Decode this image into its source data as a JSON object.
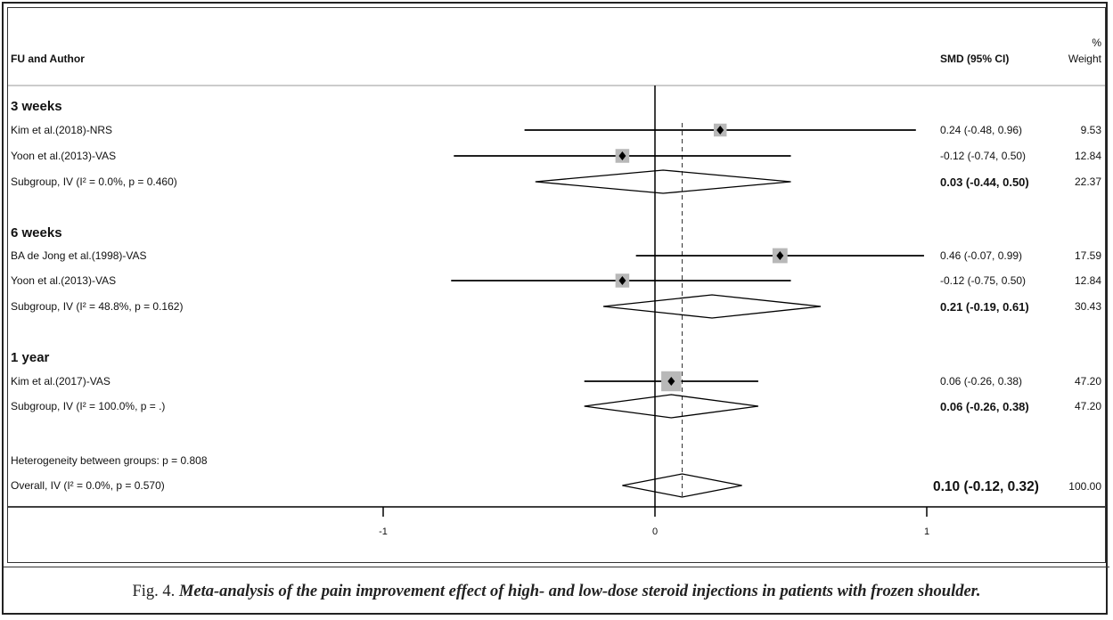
{
  "chart_data": {
    "type": "forest",
    "headers": {
      "study": "FU and Author",
      "effect": "SMD (95% CI)",
      "weight_top": "%",
      "weight_bottom": "Weight"
    },
    "xlim": [
      -1.95,
      1.55
    ],
    "null_line": 0,
    "overall_line": 0.1,
    "ticks": [
      {
        "value": -1,
        "label": "-1"
      },
      {
        "value": 0,
        "label": "0"
      },
      {
        "value": 1,
        "label": "1"
      }
    ],
    "groups": [
      {
        "name": "3 weeks",
        "studies": [
          {
            "label": "Kim et al.(2018)-NRS",
            "es": 0.24,
            "lo": -0.48,
            "hi": 0.96,
            "ci_text": "0.24 (-0.48, 0.96)",
            "weight": "9.53"
          },
          {
            "label": "Yoon et al.(2013)-VAS",
            "es": -0.12,
            "lo": -0.74,
            "hi": 0.5,
            "ci_text": "-0.12 (-0.74, 0.50)",
            "weight": "12.84"
          }
        ],
        "subtotal": {
          "label": "Subgroup, IV (I² = 0.0%, p = 0.460)",
          "es": 0.03,
          "lo": -0.44,
          "hi": 0.5,
          "ci_text": "0.03 (-0.44, 0.50)",
          "weight": "22.37"
        }
      },
      {
        "name": "6 weeks",
        "studies": [
          {
            "label": "BA de Jong et al.(1998)-VAS",
            "es": 0.46,
            "lo": -0.07,
            "hi": 0.99,
            "ci_text": "0.46 (-0.07, 0.99)",
            "weight": "17.59"
          },
          {
            "label": "Yoon et al.(2013)-VAS",
            "es": -0.12,
            "lo": -0.75,
            "hi": 0.5,
            "ci_text": "-0.12 (-0.75, 0.50)",
            "weight": "12.84"
          }
        ],
        "subtotal": {
          "label": "Subgroup, IV (I² = 48.8%, p = 0.162)",
          "es": 0.21,
          "lo": -0.19,
          "hi": 0.61,
          "ci_text": "0.21 (-0.19, 0.61)",
          "weight": "30.43"
        }
      },
      {
        "name": "1 year",
        "studies": [
          {
            "label": "Kim et al.(2017)-VAS",
            "es": 0.06,
            "lo": -0.26,
            "hi": 0.38,
            "ci_text": "0.06 (-0.26, 0.38)",
            "weight": "47.20"
          }
        ],
        "subtotal": {
          "label": "Subgroup, IV (I² = 100.0%, p = .)",
          "es": 0.06,
          "lo": -0.26,
          "hi": 0.38,
          "ci_text": "0.06 (-0.26, 0.38)",
          "weight": "47.20"
        }
      }
    ],
    "heterogeneity_text": "Heterogeneity between groups: p = 0.808",
    "overall": {
      "label": "Overall, IV (I² = 0.0%, p = 0.570)",
      "es": 0.1,
      "lo": -0.12,
      "hi": 0.32,
      "ci_text": "0.10 (-0.12, 0.32)",
      "weight": "100.00"
    }
  },
  "caption": {
    "number": "Fig. 4.",
    "text": "Meta-analysis of the pain improvement effect of high- and low-dose steroid injections in patients with frozen shoulder."
  },
  "colors": {
    "box": "#b8b8b8",
    "line": "#000000"
  }
}
